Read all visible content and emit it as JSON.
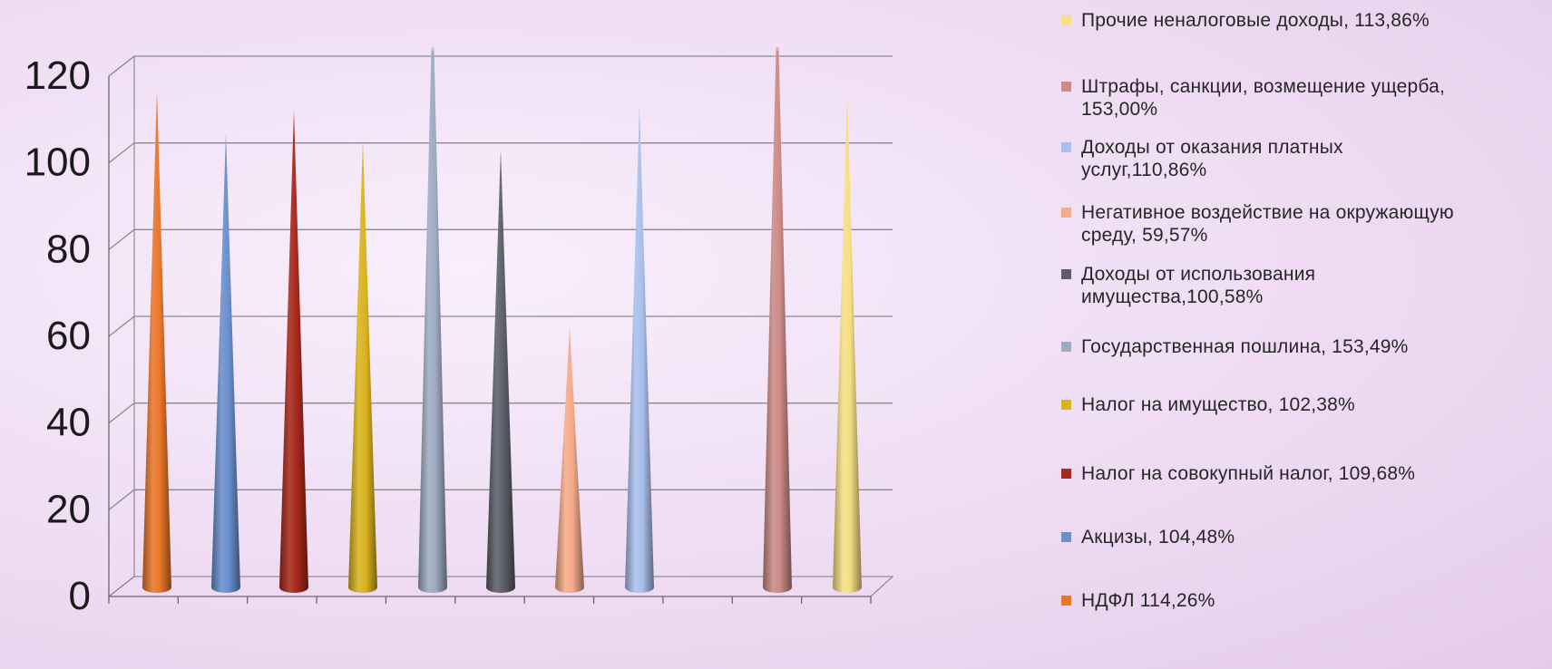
{
  "chart_data": {
    "type": "bar",
    "bar_shape": "cone",
    "ylim": [
      0,
      120
    ],
    "yticks": [
      "0",
      "20",
      "40",
      "60",
      "80",
      "100",
      "120"
    ],
    "grid": true,
    "legend_position": "right",
    "series": [
      {
        "label": "НДФЛ 114,26%",
        "value": 114.26,
        "color": "#e8772a"
      },
      {
        "label": "Акцизы, 104,48%",
        "value": 104.48,
        "color": "#6a8fcd"
      },
      {
        "label": "Налог на совокупный налог, 109,68%",
        "value": 109.68,
        "color": "#a8281c"
      },
      {
        "label": "Налог на имущество, 102,38%",
        "value": 102.38,
        "color": "#d9b31e"
      },
      {
        "label": "Государственная пошлина, 153,49%",
        "value": 153.49,
        "color": "#9daac0"
      },
      {
        "label": "Доходы от использования имущества,100,58%",
        "value": 100.58,
        "color": "#5d6068"
      },
      {
        "label": "Негативное воздействие на окружающую среду, 59,57%",
        "value": 59.57,
        "color": "#f5ab8a"
      },
      {
        "label": "Доходы от оказания платных услуг,110,86%",
        "value": 110.86,
        "color": "#a9bfec"
      },
      {
        "label": "Штрафы, санкции, возмещение ущерба, 153,00%",
        "value": 153.0,
        "color": "#cc8a86"
      },
      {
        "label": "Прочие неналоговые доходы, 113,86%",
        "value": 113.86,
        "color": "#f6df84"
      }
    ]
  },
  "legend_order": [
    9,
    8,
    7,
    6,
    5,
    4,
    3,
    2,
    1,
    0
  ],
  "legend_lines": [
    [
      "Прочие неналоговые доходы, 113,86%"
    ],
    [
      "Штрафы, санкции, возмещение ущерба,",
      "153,00%"
    ],
    [
      "Доходы от оказания платных",
      "услуг,110,86%"
    ],
    [
      "Негативное воздействие на окружающую",
      "среду, 59,57%"
    ],
    [
      "Доходы от использования",
      "имущества,100,58%"
    ],
    [
      "Государственная пошлина, 153,49%"
    ],
    [
      "Налог на имущество, 102,38%"
    ],
    [
      "Налог на совокупный налог, 109,68%"
    ],
    [
      "Акцизы, 104,48%"
    ],
    [
      "НДФЛ 114,26%"
    ]
  ]
}
